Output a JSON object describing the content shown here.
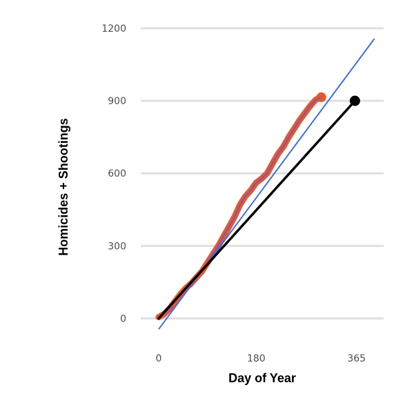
{
  "chart_data": {
    "type": "line",
    "xlabel": "Day of Year",
    "ylabel": "Homicides + Shootings",
    "xlim": [
      -33,
      415
    ],
    "ylim": [
      -110,
      1260
    ],
    "x_ticks": [
      0,
      180,
      365
    ],
    "y_ticks": [
      0,
      300,
      600,
      900,
      1200
    ],
    "grid": "horizontal",
    "colors": {
      "actual": "#e8572a",
      "smooth": "#6a5acd",
      "trend": "#3b6fe0",
      "reference": "#000000",
      "grid": "#e0e0e0"
    },
    "series": [
      {
        "key": "actual",
        "kind": "thick-line",
        "points": [
          [
            0,
            5
          ],
          [
            10,
            18
          ],
          [
            20,
            40
          ],
          [
            30,
            70
          ],
          [
            40,
            100
          ],
          [
            50,
            125
          ],
          [
            60,
            145
          ],
          [
            70,
            170
          ],
          [
            80,
            195
          ],
          [
            90,
            230
          ],
          [
            100,
            265
          ],
          [
            110,
            300
          ],
          [
            120,
            340
          ],
          [
            130,
            380
          ],
          [
            140,
            420
          ],
          [
            150,
            470
          ],
          [
            160,
            505
          ],
          [
            170,
            530
          ],
          [
            180,
            562
          ],
          [
            190,
            578
          ],
          [
            200,
            600
          ],
          [
            210,
            640
          ],
          [
            220,
            680
          ],
          [
            230,
            710
          ],
          [
            240,
            750
          ],
          [
            250,
            785
          ],
          [
            260,
            820
          ],
          [
            270,
            850
          ],
          [
            280,
            880
          ],
          [
            290,
            905
          ],
          [
            300,
            915
          ]
        ]
      },
      {
        "key": "smooth",
        "kind": "thin-line",
        "points": [
          [
            0,
            5
          ],
          [
            10,
            18
          ],
          [
            20,
            40
          ],
          [
            30,
            70
          ],
          [
            40,
            100
          ],
          [
            50,
            125
          ],
          [
            60,
            145
          ],
          [
            70,
            170
          ],
          [
            80,
            195
          ],
          [
            90,
            230
          ],
          [
            100,
            265
          ],
          [
            110,
            300
          ],
          [
            120,
            340
          ],
          [
            130,
            380
          ],
          [
            140,
            420
          ],
          [
            150,
            470
          ],
          [
            160,
            505
          ],
          [
            170,
            530
          ],
          [
            180,
            562
          ],
          [
            190,
            578
          ],
          [
            200,
            600
          ],
          [
            210,
            640
          ],
          [
            220,
            680
          ],
          [
            230,
            710
          ],
          [
            240,
            750
          ],
          [
            250,
            785
          ],
          [
            260,
            820
          ],
          [
            270,
            850
          ],
          [
            280,
            880
          ],
          [
            290,
            905
          ],
          [
            300,
            915
          ]
        ]
      },
      {
        "key": "trend",
        "kind": "regression",
        "points": [
          [
            0,
            -45
          ],
          [
            398,
            1157
          ]
        ]
      },
      {
        "key": "reference",
        "kind": "projection",
        "points": [
          [
            0,
            0
          ],
          [
            362,
            900
          ]
        ],
        "endpoint": [
          362,
          900
        ]
      }
    ]
  }
}
